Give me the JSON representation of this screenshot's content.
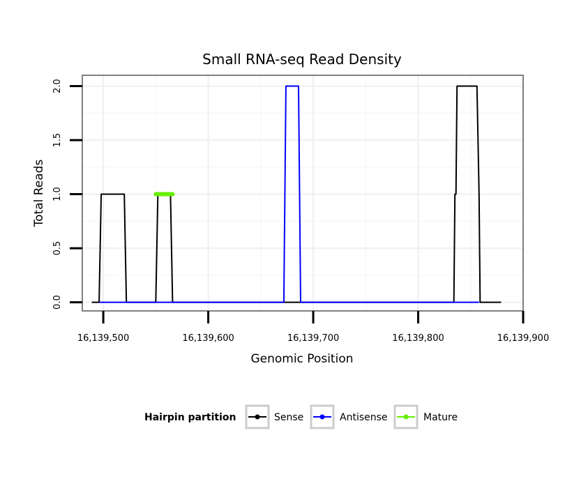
{
  "chart_data": {
    "type": "line",
    "title": "Small RNA-seq Read Density",
    "xlabel": "Genomic Position",
    "ylabel": "Total Reads",
    "xlim": [
      16139480,
      16139900
    ],
    "ylim": [
      -0.08,
      2.1
    ],
    "x_ticks": [
      16139500,
      16139600,
      16139700,
      16139800,
      16139900
    ],
    "x_tick_labels": [
      "16,139,500",
      "16,139,600",
      "16,139,700",
      "16,139,800",
      "16,139,900"
    ],
    "y_ticks": [
      0,
      0.5,
      1,
      1.5,
      2
    ],
    "y_tick_labels": [
      "0.0",
      "0.5",
      "1.0",
      "1.5",
      "2.0"
    ],
    "grid": true,
    "legend": {
      "title": "Hairpin partition",
      "position": "bottom",
      "entries": [
        "Sense",
        "Antisense",
        "Mature"
      ]
    },
    "series": [
      {
        "name": "Sense",
        "color": "#000000",
        "x": [
          16139489,
          16139496,
          16139496,
          16139498,
          16139520,
          16139522,
          16139549,
          16139550,
          16139552,
          16139564,
          16139566,
          16139834,
          16139835,
          16139836,
          16139837,
          16139856,
          16139858,
          16139859,
          16139879
        ],
        "y": [
          0,
          0,
          0,
          1,
          1,
          0,
          0,
          0,
          1,
          1,
          0,
          0,
          1,
          1,
          2,
          2,
          1,
          0,
          0
        ]
      },
      {
        "name": "Antisense",
        "color": "#0000ff",
        "x": [
          16139496,
          16139522,
          16139672,
          16139674,
          16139686,
          16139688,
          16139836,
          16139858
        ],
        "y": [
          0,
          0,
          0,
          2,
          2,
          0,
          0,
          0
        ]
      },
      {
        "name": "Mature",
        "color": "#66ee00",
        "x": [
          16139550,
          16139566
        ],
        "y": [
          1,
          1
        ]
      }
    ]
  }
}
